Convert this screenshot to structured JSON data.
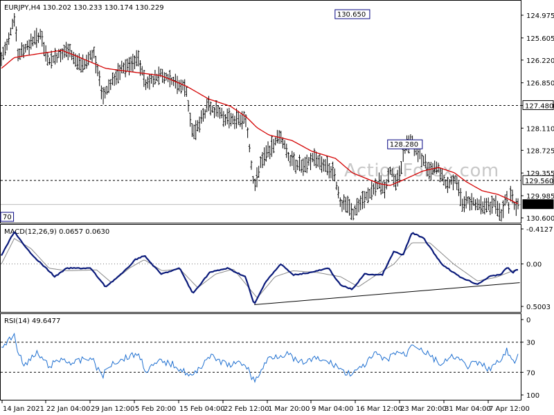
{
  "chart_data": [
    {
      "panel": "price",
      "type": "ohlc",
      "symbol_header": "EURJPY,H4  130.202 130.233 130.174 130.229",
      "series": [
        {
          "name": "EURJPY,H4",
          "color": "#000000"
        },
        {
          "name": "MA",
          "color": "#d40000"
        }
      ],
      "ylim": [
        124.975,
        130.65
      ],
      "y_ticks": [
        "130.600",
        "129.985",
        "129.355",
        "128.725",
        "128.110",
        "127.480",
        "126.850",
        "126.220",
        "125.605",
        "124.975"
      ],
      "levels": [
        {
          "label": "129.560",
          "value": 129.56,
          "style": "dashed"
        },
        {
          "label": "127.480",
          "value": 127.48,
          "style": "dashed"
        },
        {
          "label": "130.229",
          "value": 130.229,
          "style": "solid-gray"
        }
      ],
      "annotations": [
        {
          "label": "130.650",
          "value": 130.65,
          "x": "12 Mar 2021"
        },
        {
          "label": "128.280",
          "value": 128.28,
          "x": "22 Mar 2021"
        },
        {
          "label": "70",
          "value": 125.07,
          "x": "14 Jan 2021"
        }
      ],
      "price_keypoints": [
        {
          "x": "12 Jan 2021 00:00",
          "y": 126.2
        },
        {
          "x": "14 Jan 2021 04:00",
          "y": 125.1
        },
        {
          "x": "14 Jan 2021 20:00",
          "y": 126.1
        },
        {
          "x": "18 Jan 2021 12:00",
          "y": 125.5
        },
        {
          "x": "19 Jan 2021 20:00",
          "y": 126.3
        },
        {
          "x": "22 Jan 2021 04:00",
          "y": 126.0
        },
        {
          "x": "23 Jan 2021 00:00",
          "y": 125.95
        },
        {
          "x": "25 Jan 2021 12:00",
          "y": 126.4
        },
        {
          "x": "27 Jan 2021 12:00",
          "y": 126.0
        },
        {
          "x": "29 Jan 2021 00:00",
          "y": 127.2
        },
        {
          "x": "1 Feb 2021 00:00",
          "y": 126.5
        },
        {
          "x": "2 Feb 2021 12:00",
          "y": 126.35
        },
        {
          "x": "4 Feb 2021 00:00",
          "y": 126.2
        },
        {
          "x": "5 Feb 2021 08:00",
          "y": 126.9
        },
        {
          "x": "7 Feb 2021 20:00",
          "y": 126.6
        },
        {
          "x": "9 Feb 2021 12:00",
          "y": 126.8
        },
        {
          "x": "12 Feb 2021 00:00",
          "y": 127.0
        },
        {
          "x": "13 Feb 2021 04:00",
          "y": 128.3
        },
        {
          "x": "15 Feb 2021 20:00",
          "y": 127.5
        },
        {
          "x": "18 Feb 2021 12:00",
          "y": 127.8
        },
        {
          "x": "22 Feb 2021 04:00",
          "y": 127.9
        },
        {
          "x": "23 Feb 2021 12:00",
          "y": 129.8
        },
        {
          "x": "24 Feb 2021 12:00",
          "y": 129.1
        },
        {
          "x": "26 Feb 2021 00:00",
          "y": 128.7
        },
        {
          "x": "28 Feb 2021 00:00",
          "y": 128.3
        },
        {
          "x": "1 Mar 2021 12:00",
          "y": 129.0
        },
        {
          "x": "4 Mar 2021 00:00",
          "y": 129.2
        },
        {
          "x": "5 Mar 2021 12:00",
          "y": 128.9
        },
        {
          "x": "8 Mar 2021 20:00",
          "y": 129.3
        },
        {
          "x": "10 Mar 2021 00:00",
          "y": 130.2
        },
        {
          "x": "11 Mar 2021 12:00",
          "y": 130.3
        },
        {
          "x": "12 Mar 2021 00:00",
          "y": 130.5
        },
        {
          "x": "14 Mar 2021 08:00",
          "y": 130.0
        },
        {
          "x": "16 Mar 2021 12:00",
          "y": 129.6
        },
        {
          "x": "17 Mar 2021 12:00",
          "y": 129.9
        },
        {
          "x": "18 Mar 2021 08:00",
          "y": 129.3
        },
        {
          "x": "19 Mar 2021 12:00",
          "y": 129.6
        },
        {
          "x": "21 Mar 2021 00:00",
          "y": 128.6
        },
        {
          "x": "22 Mar 2021 00:00",
          "y": 128.5
        },
        {
          "x": "23 Mar 2021 12:00",
          "y": 128.9
        },
        {
          "x": "25 Mar 2021 04:00",
          "y": 129.3
        },
        {
          "x": "26 Mar 2021 00:00",
          "y": 129.1
        },
        {
          "x": "28 Mar 2021 00:00",
          "y": 129.7
        },
        {
          "x": "29 Mar 2021 04:00",
          "y": 129.5
        },
        {
          "x": "30 Mar 2021 12:00",
          "y": 130.2
        },
        {
          "x": "31 Mar 2021 04:00",
          "y": 130.1
        },
        {
          "x": "2 Apr 2021 12:00",
          "y": 130.2
        },
        {
          "x": "4 Apr 2021 00:00",
          "y": 130.3
        },
        {
          "x": "5 Apr 2021 00:00",
          "y": 130.15
        },
        {
          "x": "6 Apr 2021 00:00",
          "y": 130.6
        },
        {
          "x": "6 Apr 2021 20:00",
          "y": 130.05
        },
        {
          "x": "7 Apr 2021 08:00",
          "y": 130.3
        },
        {
          "x": "7 Apr 2021 16:00",
          "y": 129.9
        },
        {
          "x": "8 Apr 2021 04:00",
          "y": 130.3
        },
        {
          "x": "8 Apr 2021 16:00",
          "y": 130.229
        }
      ],
      "ma_keypoints": [
        {
          "x": "12 Jan 2021 00:00",
          "y": 126.45
        },
        {
          "x": "14 Jan 2021 04:00",
          "y": 126.15
        },
        {
          "x": "18 Jan 2021 00:00",
          "y": 126.05
        },
        {
          "x": "22 Jan 2021 04:00",
          "y": 125.95
        },
        {
          "x": "24 Jan 2021 12:00",
          "y": 126.1
        },
        {
          "x": "29 Jan 2021 12:00",
          "y": 126.45
        },
        {
          "x": "3 Feb 2021 00:00",
          "y": 126.55
        },
        {
          "x": "7 Feb 2021 20:00",
          "y": 126.65
        },
        {
          "x": "12 Feb 2021 04:00",
          "y": 126.95
        },
        {
          "x": "15 Feb 2021 20:00",
          "y": 127.3
        },
        {
          "x": "19 Feb 2021 12:00",
          "y": 127.5
        },
        {
          "x": "22 Feb 2021 04:00",
          "y": 127.8
        },
        {
          "x": "24 Feb 2021 00:00",
          "y": 128.1
        },
        {
          "x": "26 Feb 2021 00:00",
          "y": 128.3
        },
        {
          "x": "1 Mar 2021 20:00",
          "y": 128.45
        },
        {
          "x": "5 Mar 2021 04:00",
          "y": 128.75
        },
        {
          "x": "9 Mar 2021 04:00",
          "y": 128.95
        },
        {
          "x": "12 Mar 2021 00:00",
          "y": 129.35
        },
        {
          "x": "16 Mar 2021 12:00",
          "y": 129.65
        },
        {
          "x": "18 Mar 2021 08:00",
          "y": 129.7
        },
        {
          "x": "20 Mar 2021 12:00",
          "y": 129.55
        },
        {
          "x": "23 Mar 2021 20:00",
          "y": 129.3
        },
        {
          "x": "26 Mar 2021 12:00",
          "y": 129.2
        },
        {
          "x": "29 Mar 2021 04:00",
          "y": 129.35
        },
        {
          "x": "31 Mar 2021 04:00",
          "y": 129.6
        },
        {
          "x": "2 Apr 2021 20:00",
          "y": 129.85
        },
        {
          "x": "5 Apr 2021 12:00",
          "y": 129.95
        },
        {
          "x": "7 Apr 2021 12:00",
          "y": 130.1
        },
        {
          "x": "8 Apr 2021 16:00",
          "y": 130.2
        }
      ]
    },
    {
      "panel": "macd",
      "type": "line",
      "header": "MACD(12,26,9) 0.0657 0.0630",
      "series": [
        {
          "name": "MACD(12,26,9)",
          "color": "#0a1a7a"
        },
        {
          "name": "Signal",
          "color": "#888888"
        }
      ],
      "ylim": [
        -0.4127,
        0.5003
      ],
      "y_ticks": [
        "0.5003",
        "0.00",
        "-0.4127"
      ],
      "zero_line": 0,
      "trendline": [
        {
          "x": "23 Feb 2021 12:00",
          "y": 0.48
        },
        {
          "x": "8 Apr 2021 16:00",
          "y": 0.22
        }
      ],
      "macd_keypoints": [
        {
          "x": "12 Jan 2021 00:00",
          "y": -0.1
        },
        {
          "x": "14 Jan 2021 04:00",
          "y": -0.38
        },
        {
          "x": "16 Jan 2021 00:00",
          "y": -0.2
        },
        {
          "x": "18 Jan 2021 00:00",
          "y": -0.05
        },
        {
          "x": "21 Jan 2021 00:00",
          "y": 0.15
        },
        {
          "x": "23 Jan 2021 00:00",
          "y": 0.05
        },
        {
          "x": "27 Jan 2021 00:00",
          "y": 0.05
        },
        {
          "x": "29 Jan 2021 12:00",
          "y": 0.27
        },
        {
          "x": "1 Feb 2021 12:00",
          "y": 0.1
        },
        {
          "x": "3 Feb 2021 12:00",
          "y": -0.05
        },
        {
          "x": "5 Feb 2021 00:00",
          "y": -0.1
        },
        {
          "x": "7 Feb 2021 20:00",
          "y": 0.12
        },
        {
          "x": "11 Feb 2021 00:00",
          "y": 0.05
        },
        {
          "x": "13 Feb 2021 04:00",
          "y": 0.35
        },
        {
          "x": "16 Feb 2021 00:00",
          "y": 0.1
        },
        {
          "x": "19 Feb 2021 00:00",
          "y": 0.05
        },
        {
          "x": "22 Feb 2021 00:00",
          "y": 0.15
        },
        {
          "x": "23 Feb 2021 12:00",
          "y": 0.48
        },
        {
          "x": "25 Feb 2021 12:00",
          "y": 0.2
        },
        {
          "x": "28 Feb 2021 00:00",
          "y": 0.0
        },
        {
          "x": "2 Mar 2021 00:00",
          "y": 0.13
        },
        {
          "x": "5 Mar 2021 00:00",
          "y": 0.1
        },
        {
          "x": "8 Mar 2021 00:00",
          "y": 0.05
        },
        {
          "x": "10 Mar 2021 00:00",
          "y": 0.25
        },
        {
          "x": "12 Mar 2021 00:00",
          "y": 0.3
        },
        {
          "x": "14 Mar 2021 00:00",
          "y": 0.12
        },
        {
          "x": "17 Mar 2021 00:00",
          "y": 0.13
        },
        {
          "x": "19 Mar 2021 00:00",
          "y": -0.15
        },
        {
          "x": "20 Mar 2021 12:00",
          "y": -0.1
        },
        {
          "x": "22 Mar 2021 00:00",
          "y": -0.37
        },
        {
          "x": "24 Mar 2021 00:00",
          "y": -0.3
        },
        {
          "x": "27 Mar 2021 00:00",
          "y": 0.0
        },
        {
          "x": "30 Mar 2021 00:00",
          "y": 0.15
        },
        {
          "x": "2 Apr 2021 00:00",
          "y": 0.24
        },
        {
          "x": "4 Apr 2021 00:00",
          "y": 0.15
        },
        {
          "x": "6 Apr 2021 00:00",
          "y": 0.12
        },
        {
          "x": "7 Apr 2021 00:00",
          "y": 0.04
        },
        {
          "x": "8 Apr 2021 00:00",
          "y": 0.1
        },
        {
          "x": "8 Apr 2021 16:00",
          "y": 0.0657
        }
      ],
      "signal_keypoints": [
        {
          "x": "12 Jan 2021 00:00",
          "y": 0.0
        },
        {
          "x": "14 Jan 2021 04:00",
          "y": -0.3
        },
        {
          "x": "17 Jan 2021 00:00",
          "y": -0.18
        },
        {
          "x": "20 Jan 2021 00:00",
          "y": 0.05
        },
        {
          "x": "23 Jan 2021 00:00",
          "y": 0.08
        },
        {
          "x": "28 Jan 2021 00:00",
          "y": 0.07
        },
        {
          "x": "30 Jan 2021 12:00",
          "y": 0.22
        },
        {
          "x": "2 Feb 2021 12:00",
          "y": 0.05
        },
        {
          "x": "5 Feb 2021 00:00",
          "y": -0.05
        },
        {
          "x": "8 Feb 2021 00:00",
          "y": 0.08
        },
        {
          "x": "11 Feb 2021 00:00",
          "y": 0.06
        },
        {
          "x": "14 Feb 2021 00:00",
          "y": 0.28
        },
        {
          "x": "17 Feb 2021 00:00",
          "y": 0.12
        },
        {
          "x": "20 Feb 2021 00:00",
          "y": 0.06
        },
        {
          "x": "24 Feb 2021 00:00",
          "y": 0.4
        },
        {
          "x": "27 Feb 2021 00:00",
          "y": 0.15
        },
        {
          "x": "2 Mar 2021 00:00",
          "y": 0.08
        },
        {
          "x": "6 Mar 2021 00:00",
          "y": 0.1
        },
        {
          "x": "10 Mar 2021 00:00",
          "y": 0.15
        },
        {
          "x": "13 Mar 2021 00:00",
          "y": 0.27
        },
        {
          "x": "16 Mar 2021 00:00",
          "y": 0.13
        },
        {
          "x": "19 Mar 2021 00:00",
          "y": 0.0
        },
        {
          "x": "22 Mar 2021 00:00",
          "y": -0.25
        },
        {
          "x": "25 Mar 2021 00:00",
          "y": -0.25
        },
        {
          "x": "29 Mar 2021 00:00",
          "y": 0.0
        },
        {
          "x": "2 Apr 2021 00:00",
          "y": 0.2
        },
        {
          "x": "5 Apr 2021 00:00",
          "y": 0.16
        },
        {
          "x": "8 Apr 2021 16:00",
          "y": 0.063
        }
      ]
    },
    {
      "panel": "rsi",
      "type": "line",
      "header": "RSI(14) 49.6477",
      "series": [
        {
          "name": "RSI(14)",
          "color": "#1e6fd0"
        }
      ],
      "ylim": [
        0,
        100
      ],
      "y_ticks": [
        "100",
        "70",
        "30",
        "0"
      ],
      "levels": [
        70,
        30
      ],
      "rsi_keypoints": [
        {
          "x": "12 Jan 2021 00:00",
          "y": 38
        },
        {
          "x": "14 Jan 2021 04:00",
          "y": 20
        },
        {
          "x": "15 Jan 2021 00:00",
          "y": 48
        },
        {
          "x": "16 Jan 2021 00:00",
          "y": 60
        },
        {
          "x": "18 Jan 2021 00:00",
          "y": 45
        },
        {
          "x": "20 Jan 2021 00:00",
          "y": 62
        },
        {
          "x": "22 Jan 2021 04:00",
          "y": 52
        },
        {
          "x": "24 Jan 2021 00:00",
          "y": 58
        },
        {
          "x": "27 Jan 2021 00:00",
          "y": 50
        },
        {
          "x": "29 Jan 2021 00:00",
          "y": 75
        },
        {
          "x": "30 Jan 2021 12:00",
          "y": 58
        },
        {
          "x": "2 Feb 2021 00:00",
          "y": 50
        },
        {
          "x": "4 Feb 2021 00:00",
          "y": 45
        },
        {
          "x": "5 Feb 2021 08:00",
          "y": 68
        },
        {
          "x": "7 Feb 2021 20:00",
          "y": 55
        },
        {
          "x": "10 Feb 2021 00:00",
          "y": 60
        },
        {
          "x": "13 Feb 2021 04:00",
          "y": 76
        },
        {
          "x": "15 Feb 2021 20:00",
          "y": 48
        },
        {
          "x": "19 Feb 2021 00:00",
          "y": 60
        },
        {
          "x": "22 Feb 2021 00:00",
          "y": 58
        },
        {
          "x": "23 Feb 2021 12:00",
          "y": 83
        },
        {
          "x": "26 Feb 2021 00:00",
          "y": 50
        },
        {
          "x": "1 Mar 2021 00:00",
          "y": 45
        },
        {
          "x": "3 Mar 2021 00:00",
          "y": 58
        },
        {
          "x": "6 Mar 2021 00:00",
          "y": 52
        },
        {
          "x": "9 Mar 2021 04:00",
          "y": 60
        },
        {
          "x": "11 Mar 2021 00:00",
          "y": 72
        },
        {
          "x": "13 Mar 2021 00:00",
          "y": 68
        },
        {
          "x": "16 Mar 2021 00:00",
          "y": 45
        },
        {
          "x": "17 Mar 2021 12:00",
          "y": 55
        },
        {
          "x": "19 Mar 2021 12:00",
          "y": 42
        },
        {
          "x": "21 Mar 2021 00:00",
          "y": 48
        },
        {
          "x": "22 Mar 2021 00:00",
          "y": 30
        },
        {
          "x": "24 Mar 2021 00:00",
          "y": 42
        },
        {
          "x": "27 Mar 2021 00:00",
          "y": 60
        },
        {
          "x": "29 Mar 2021 04:00",
          "y": 48
        },
        {
          "x": "31 Mar 2021 04:00",
          "y": 62
        },
        {
          "x": "2 Apr 2021 00:00",
          "y": 58
        },
        {
          "x": "4 Apr 2021 00:00",
          "y": 65
        },
        {
          "x": "6 Apr 2021 00:00",
          "y": 55
        },
        {
          "x": "7 Apr 2021 00:00",
          "y": 40
        },
        {
          "x": "8 Apr 2021 00:00",
          "y": 58
        },
        {
          "x": "8 Apr 2021 16:00",
          "y": 49.6477
        }
      ]
    }
  ],
  "x_axis_labels": [
    "14 Jan 2021",
    "22 Jan 04:00",
    "29 Jan 12:00",
    "5 Feb 20:00",
    "15 Feb 04:00",
    "22 Feb 12:00",
    "1 Mar 20:00",
    "9 Mar 04:00",
    "16 Mar 12:00",
    "23 Mar 20:00",
    "31 Mar 04:00",
    "7 Apr 12:00"
  ],
  "watermark": "ActionForex.com",
  "colors": {
    "price_bars": "#000000",
    "moving_average": "#d40000",
    "macd": "#0a1a7a",
    "signal": "#888888",
    "rsi": "#1e6fd0",
    "label_box_border": "#000080"
  }
}
